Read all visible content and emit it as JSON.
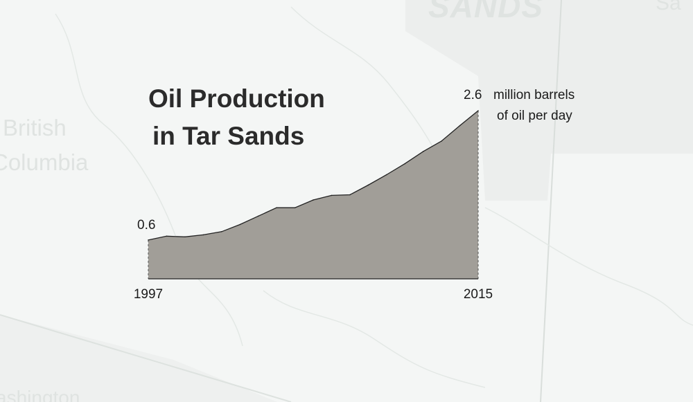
{
  "map": {
    "labels": {
      "sands": "SANDS",
      "sask": "Sa",
      "bc_line1": "British",
      "bc_line2": "Columbia",
      "washington": "ashington"
    }
  },
  "title": {
    "line1": "Oil Production",
    "line2": "in Tar Sands"
  },
  "colors": {
    "fill": "#a19e98",
    "line": "#222222",
    "text": "#1a1a1a",
    "background": "#f4f6f5"
  },
  "chart_data": {
    "type": "area",
    "title": "Oil Production in Tar Sands",
    "xlabel": "",
    "ylabel": "",
    "x": [
      1997,
      1998,
      1999,
      2000,
      2001,
      2002,
      2003,
      2004,
      2005,
      2006,
      2007,
      2008,
      2009,
      2010,
      2011,
      2012,
      2013,
      2014,
      2015
    ],
    "y": [
      0.6,
      0.66,
      0.65,
      0.68,
      0.73,
      0.84,
      0.97,
      1.1,
      1.1,
      1.22,
      1.29,
      1.3,
      1.45,
      1.61,
      1.78,
      1.97,
      2.13,
      2.37,
      2.6
    ],
    "xlim": [
      1997,
      2015
    ],
    "ylim": [
      0,
      2.6
    ],
    "tick_labels": {
      "start_year": "1997",
      "end_year": "2015"
    },
    "annotations": {
      "start_value": "0.6",
      "end_value": "2.6",
      "unit_line1": "million barrels",
      "unit_line2": "of oil per day"
    },
    "grid": false,
    "legend": "none"
  }
}
